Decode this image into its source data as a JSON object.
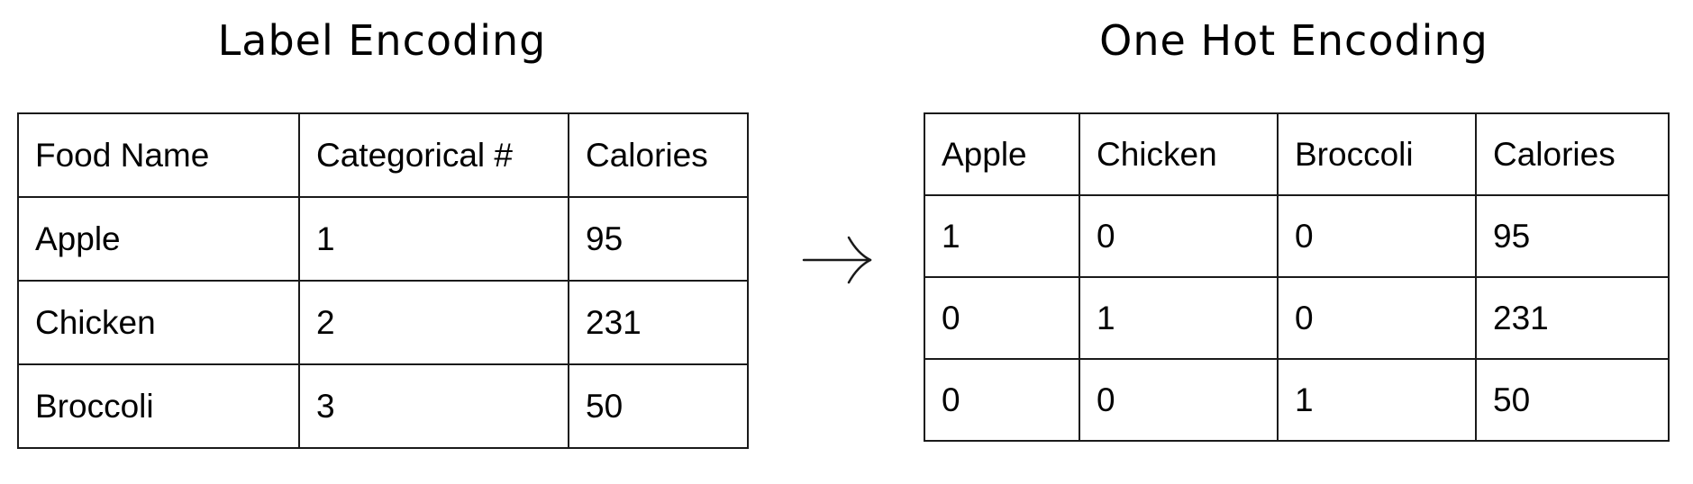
{
  "label_encoding": {
    "title": "Label Encoding",
    "columns": [
      "Food Name",
      "Categorical #",
      "Calories"
    ],
    "rows": [
      [
        "Apple",
        "1",
        "95"
      ],
      [
        "Chicken",
        "2",
        "231"
      ],
      [
        "Broccoli",
        "3",
        "50"
      ]
    ]
  },
  "one_hot_encoding": {
    "title": "One Hot Encoding",
    "columns": [
      "Apple",
      "Chicken",
      "Broccoli",
      "Calories"
    ],
    "rows": [
      [
        "1",
        "0",
        "0",
        "95"
      ],
      [
        "0",
        "1",
        "0",
        "231"
      ],
      [
        "0",
        "0",
        "1",
        "50"
      ]
    ]
  },
  "arrow_icon": "right-arrow-icon"
}
